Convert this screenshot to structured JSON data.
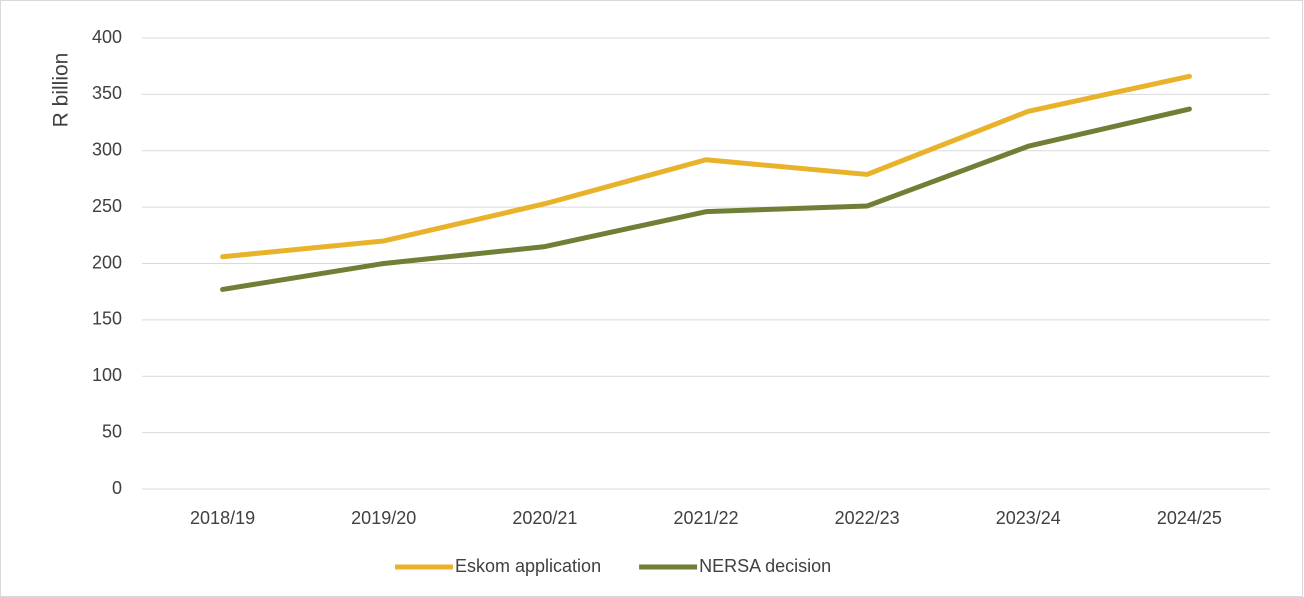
{
  "chart_data": {
    "type": "line",
    "y_label": "R billion",
    "categories": [
      "2018/19",
      "2019/20",
      "2020/21",
      "2021/22",
      "2022/23",
      "2023/24",
      "2024/25"
    ],
    "series": [
      {
        "name": "Eskom application",
        "color": "#e8b22a",
        "values": [
          206,
          220,
          253,
          292,
          279,
          335,
          366
        ]
      },
      {
        "name": "NERSA decision",
        "color": "#6f7f36",
        "values": [
          177,
          200,
          215,
          246,
          251,
          304,
          337
        ]
      }
    ],
    "ylim": [
      0,
      400
    ],
    "yticks": [
      0,
      50,
      100,
      150,
      200,
      250,
      300,
      350,
      400
    ],
    "grid": true,
    "legend": "bottom"
  }
}
